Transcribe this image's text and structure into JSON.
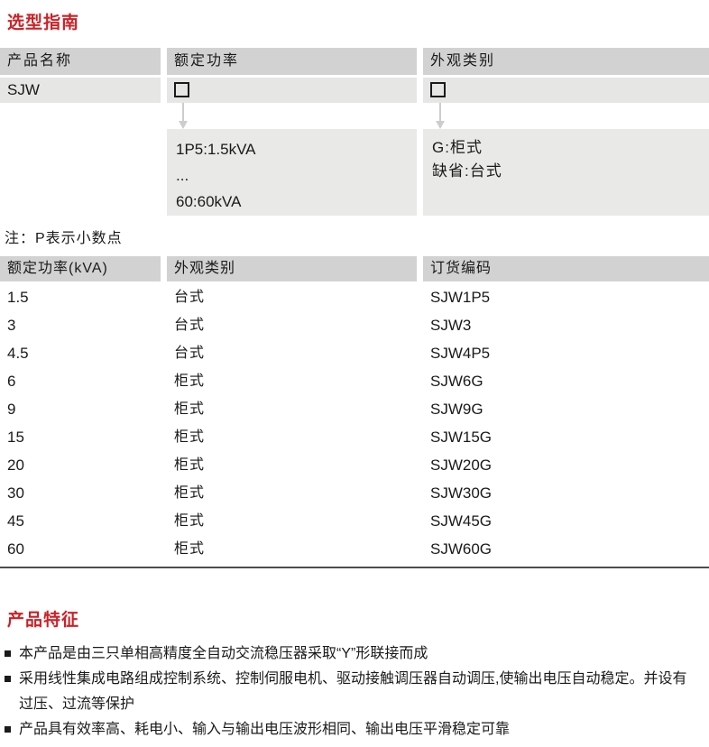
{
  "colors": {
    "accent_red": "#cc2127",
    "table_header_bg": "#d2d2d2",
    "value_row_bg": "#e6e6e4",
    "info_box_bg": "#e9e9e7",
    "arrow_gray": "#cdcdcb"
  },
  "selection_guide": {
    "title": "选型指南",
    "columns": [
      {
        "header": "产品名称",
        "value": "SJW"
      },
      {
        "header": "额定功率",
        "placeholder_symbol": "□",
        "options": [
          "1P5:1.5kVA",
          "...",
          "60:60kVA"
        ]
      },
      {
        "header": "外观类别",
        "placeholder_symbol": "□",
        "options": [
          "G:柜式",
          "缺省:台式"
        ]
      }
    ],
    "note": "注：P表示小数点"
  },
  "order_table": {
    "headers": [
      "额定功率(kVA)",
      "外观类别",
      "订货编码"
    ],
    "rows": [
      {
        "power": "1.5",
        "type": "台式",
        "code": "SJW1P5"
      },
      {
        "power": "3",
        "type": "台式",
        "code": "SJW3"
      },
      {
        "power": "4.5",
        "type": "台式",
        "code": "SJW4P5"
      },
      {
        "power": "6",
        "type": "柜式",
        "code": "SJW6G"
      },
      {
        "power": "9",
        "type": "柜式",
        "code": "SJW9G"
      },
      {
        "power": "15",
        "type": "柜式",
        "code": "SJW15G"
      },
      {
        "power": "20",
        "type": "柜式",
        "code": "SJW20G"
      },
      {
        "power": "30",
        "type": "柜式",
        "code": "SJW30G"
      },
      {
        "power": "45",
        "type": "柜式",
        "code": "SJW45G"
      },
      {
        "power": "60",
        "type": "柜式",
        "code": "SJW60G"
      }
    ]
  },
  "features": {
    "title": "产品特征",
    "items": [
      "本产品是由三只单相高精度全自动交流稳压器采取“Y”形联接而成",
      "采用线性集成电路组成控制系统、控制伺服电机、驱动接触调压器自动调压,使输出电压自动稳定。并设有过压、过流等保护",
      "产品具有效率高、耗电小、输入与输出电压波形相同、输出电压平滑稳定可靠"
    ]
  }
}
